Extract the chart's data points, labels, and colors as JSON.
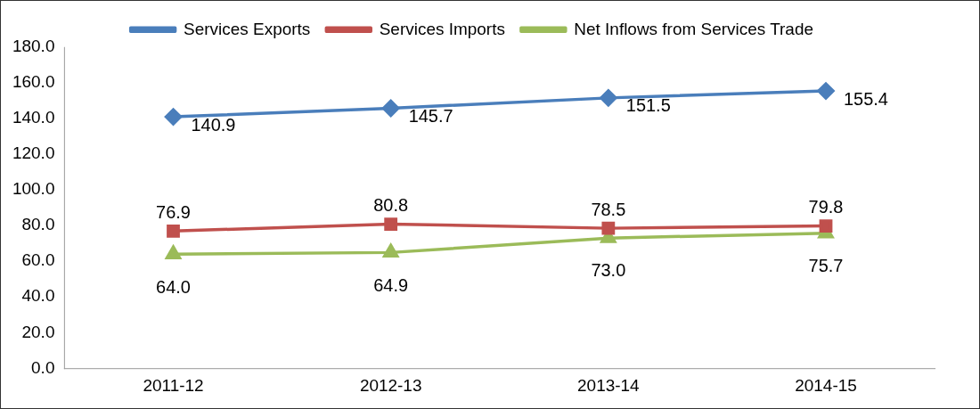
{
  "chart_data": {
    "type": "line",
    "categories": [
      "2011-12",
      "2012-13",
      "2013-14",
      "2014-15"
    ],
    "series": [
      {
        "name": "Services Exports",
        "color": "#4a7ebb",
        "values": [
          140.9,
          145.7,
          151.5,
          155.4
        ],
        "marker": "diamond",
        "value_labels": [
          "140.9",
          "145.7",
          "151.5",
          "155.4"
        ]
      },
      {
        "name": "Services Imports",
        "color": "#c0504d",
        "values": [
          76.9,
          80.8,
          78.5,
          79.8
        ],
        "marker": "square",
        "value_labels": [
          "76.9",
          "80.8",
          "78.5",
          "79.8"
        ]
      },
      {
        "name": "Net Inflows from Services Trade",
        "color": "#9bbb59",
        "values": [
          64.0,
          64.9,
          73.0,
          75.7
        ],
        "marker": "triangle",
        "value_labels": [
          "64.0",
          "64.9",
          "73.0",
          "75.7"
        ]
      }
    ],
    "ylim": [
      0,
      180
    ],
    "yticks": [
      {
        "value": 0,
        "label": "0.0"
      },
      {
        "value": 20,
        "label": "20.0"
      },
      {
        "value": 40,
        "label": "40.0"
      },
      {
        "value": 60,
        "label": "60.0"
      },
      {
        "value": 80,
        "label": "80.0"
      },
      {
        "value": 100,
        "label": "100.0"
      },
      {
        "value": 120,
        "label": "120.0"
      },
      {
        "value": 140,
        "label": "140.0"
      },
      {
        "value": 160,
        "label": "160.0"
      },
      {
        "value": 180,
        "label": "180.0"
      }
    ],
    "grid": false,
    "legend": "top"
  }
}
